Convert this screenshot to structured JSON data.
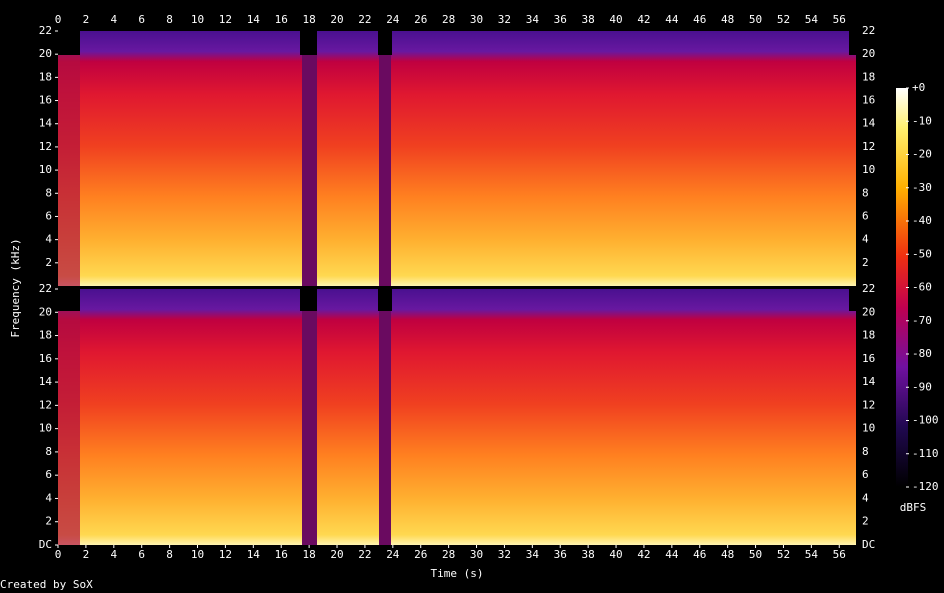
{
  "chart_data": {
    "type": "spectrogram",
    "xlabel": "Time (s)",
    "ylabel": "Frequency (kHz)",
    "xlim": [
      0,
      57.2
    ],
    "xticks": [
      0,
      2,
      4,
      6,
      8,
      10,
      12,
      14,
      16,
      18,
      20,
      22,
      24,
      26,
      28,
      30,
      32,
      34,
      36,
      38,
      40,
      42,
      44,
      46,
      48,
      50,
      52,
      54,
      56
    ],
    "panels": [
      {
        "ylim": [
          0,
          22
        ],
        "yticks": [
          2,
          4,
          6,
          8,
          10,
          12,
          14,
          16,
          18,
          20,
          22
        ]
      },
      {
        "ylim": [
          0,
          22
        ],
        "yticks": [
          {
            "value": 0,
            "label": "DC"
          },
          2,
          4,
          6,
          8,
          10,
          12,
          14,
          16,
          18,
          20,
          22
        ]
      }
    ],
    "colorbar": {
      "label": "dBFS",
      "lim": [
        -120,
        0
      ],
      "ticks": [
        {
          "value": 0,
          "label": "+0"
        },
        -10,
        -20,
        -30,
        -40,
        -50,
        -60,
        -70,
        -80,
        -90,
        -100,
        -110,
        -120
      ]
    },
    "footer": "Created by SoX"
  }
}
